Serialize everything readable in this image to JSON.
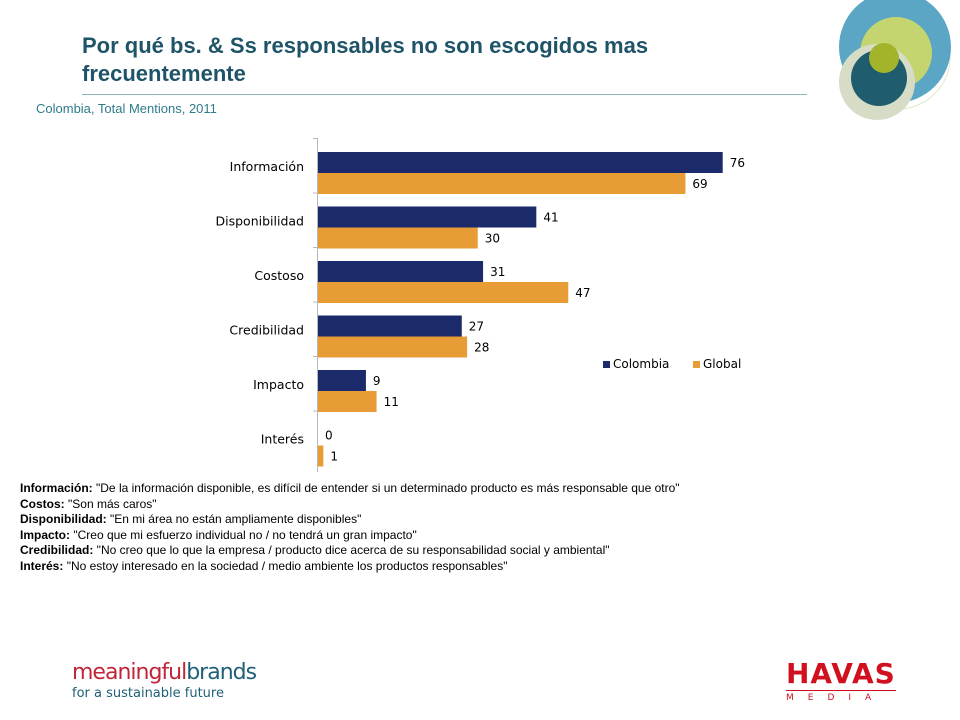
{
  "header": {
    "title": "Por qué bs. & Ss responsables no son escogidos mas frecuentemente",
    "subtitle": "Colombia, Total Mentions, 2011"
  },
  "chart_data": {
    "type": "bar",
    "orientation": "horizontal",
    "categories": [
      "Información",
      "Disponibilidad",
      "Costoso",
      "Credibilidad",
      "Impacto",
      "Interés"
    ],
    "series": [
      {
        "name": "Colombia",
        "color": "#1b2a6b",
        "values": [
          76,
          41,
          31,
          27,
          9,
          0
        ]
      },
      {
        "name": "Global",
        "color": "#e89c35",
        "values": [
          69,
          30,
          47,
          28,
          11,
          1
        ]
      }
    ],
    "xlim": [
      0,
      80
    ],
    "grid": false,
    "legend_position": "right"
  },
  "notes": [
    {
      "key": "Información:",
      "text": " \"De la información disponible, es difícil de entender si un determinado producto es más responsable que otro\""
    },
    {
      "key": "Costos:",
      "text": " \"Son más caros\""
    },
    {
      "key": "Disponibilidad:",
      "text": " \"En mi área no están ampliamente disponibles\""
    },
    {
      "key": "Impacto:",
      "text": " \"Creo que mi esfuerzo individual no / no tendrá un gran impacto\""
    },
    {
      "key": "Credibilidad:",
      "text": " \"No creo que lo que la empresa / producto dice acerca de su responsabilidad social y ambiental\""
    },
    {
      "key": "Interés:",
      "text": " \"No estoy interesado en la sociedad / medio ambiente los productos responsables\""
    }
  ],
  "footer": {
    "logo_left_word1": "meaningful",
    "logo_left_word2": "brands",
    "logo_left_tagline": "for a sustainable future",
    "logo_right_word": "HAVAS",
    "logo_right_sub": "MEDIA"
  }
}
